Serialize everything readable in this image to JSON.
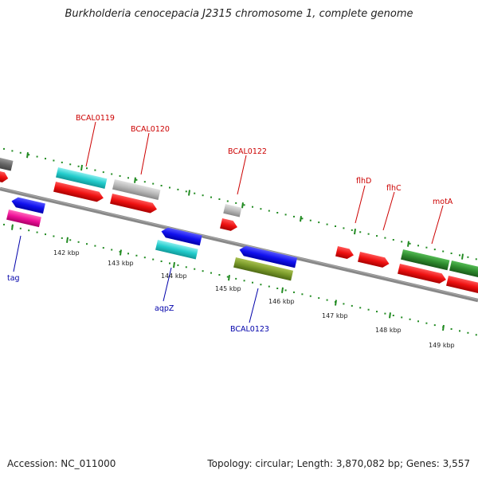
{
  "title": "Burkholderia cenocepacia J2315 chromosome 1, complete genome",
  "footer": {
    "accession": "Accession: NC_011000",
    "summary": "Topology: circular; Length: 3,870,082 bp; Genes: 3,557"
  },
  "scale_labels": [
    "142 kbp",
    "143 kbp",
    "144 kbp",
    "145 kbp",
    "146 kbp",
    "147 kbp",
    "148 kbp",
    "149 kbp"
  ],
  "gene_labels_top": [
    "BCAL0119",
    "BCAL0120",
    "BCAL0122",
    "flhD",
    "flhC",
    "motA"
  ],
  "gene_labels_bottom": [
    "tag",
    "aqpZ",
    "BCAL0123"
  ],
  "colors": {
    "backbone": "#888888",
    "tick": "#228b22",
    "red": "#ee1111",
    "blue": "#1111ee",
    "cyan": "#22cccc",
    "gray": "#b8b8b8",
    "darkgreen": "#2e8b2e",
    "olive": "#7a9a2a",
    "magenta": "#ee1199",
    "darkgray": "#666666",
    "label_top": "#cc0000",
    "label_bottom": "#0000aa"
  }
}
